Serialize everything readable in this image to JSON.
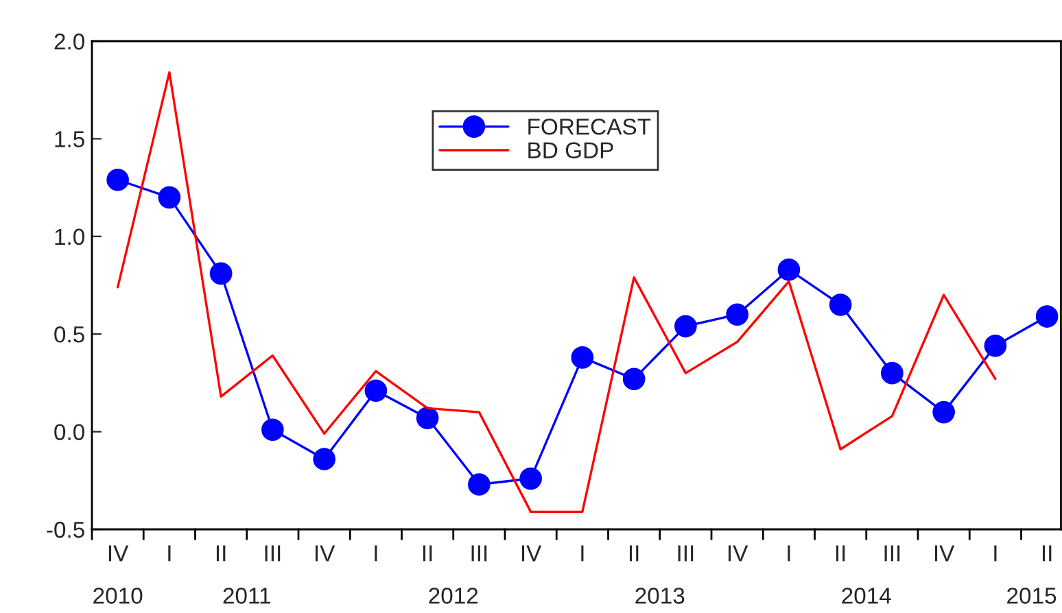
{
  "chart_data": {
    "type": "line",
    "categories": [
      "IV",
      "I",
      "II",
      "III",
      "IV",
      "I",
      "II",
      "III",
      "IV",
      "I",
      "II",
      "III",
      "IV",
      "I",
      "II",
      "III",
      "IV",
      "I",
      "II"
    ],
    "series": [
      {
        "name": "FORECAST",
        "color": "#0000ff",
        "marker": "circle",
        "values": [
          1.29,
          1.2,
          0.81,
          0.01,
          -0.14,
          0.21,
          0.07,
          -0.27,
          -0.24,
          0.38,
          0.27,
          0.54,
          0.6,
          0.83,
          0.65,
          0.3,
          0.1,
          0.44,
          0.59
        ]
      },
      {
        "name": "BD GDP",
        "color": "#ff0000",
        "marker": "none",
        "values": [
          0.74,
          1.84,
          0.18,
          0.39,
          -0.01,
          0.31,
          0.12,
          0.1,
          -0.41,
          -0.41,
          0.79,
          0.3,
          0.46,
          0.77,
          -0.09,
          0.08,
          0.7,
          0.27,
          null
        ]
      }
    ],
    "ylim": [
      -0.5,
      2.0
    ],
    "yticks": [
      {
        "value": -0.5,
        "label": "-0.5"
      },
      {
        "value": 0.0,
        "label": "0.0"
      },
      {
        "value": 0.5,
        "label": "0.5"
      },
      {
        "value": 1.0,
        "label": "1.0"
      },
      {
        "value": 1.5,
        "label": "1.5"
      },
      {
        "value": 2.0,
        "label": "2.0"
      }
    ],
    "grid": false,
    "legend": "top",
    "annotations": [
      "2010",
      "2011",
      "2012",
      "2013",
      "2014",
      "2015"
    ]
  }
}
